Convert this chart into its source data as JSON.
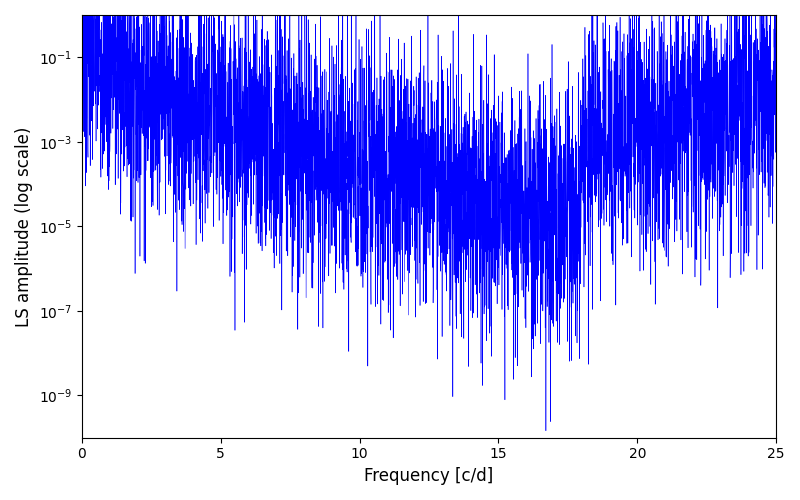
{
  "xlabel": "Frequency [c/d]",
  "ylabel": "LS amplitude (log scale)",
  "line_color": "#0000ff",
  "xlim": [
    0,
    25
  ],
  "ylim": [
    1e-10,
    1.0
  ],
  "yticks": [
    1e-09,
    1e-07,
    1e-05,
    0.001,
    0.1
  ],
  "xticks": [
    0,
    5,
    10,
    15,
    20,
    25
  ],
  "background_color": "#ffffff",
  "figsize": [
    8.0,
    5.0
  ],
  "dpi": 100,
  "seed": 7,
  "n_points": 5000,
  "linewidth": 0.4
}
